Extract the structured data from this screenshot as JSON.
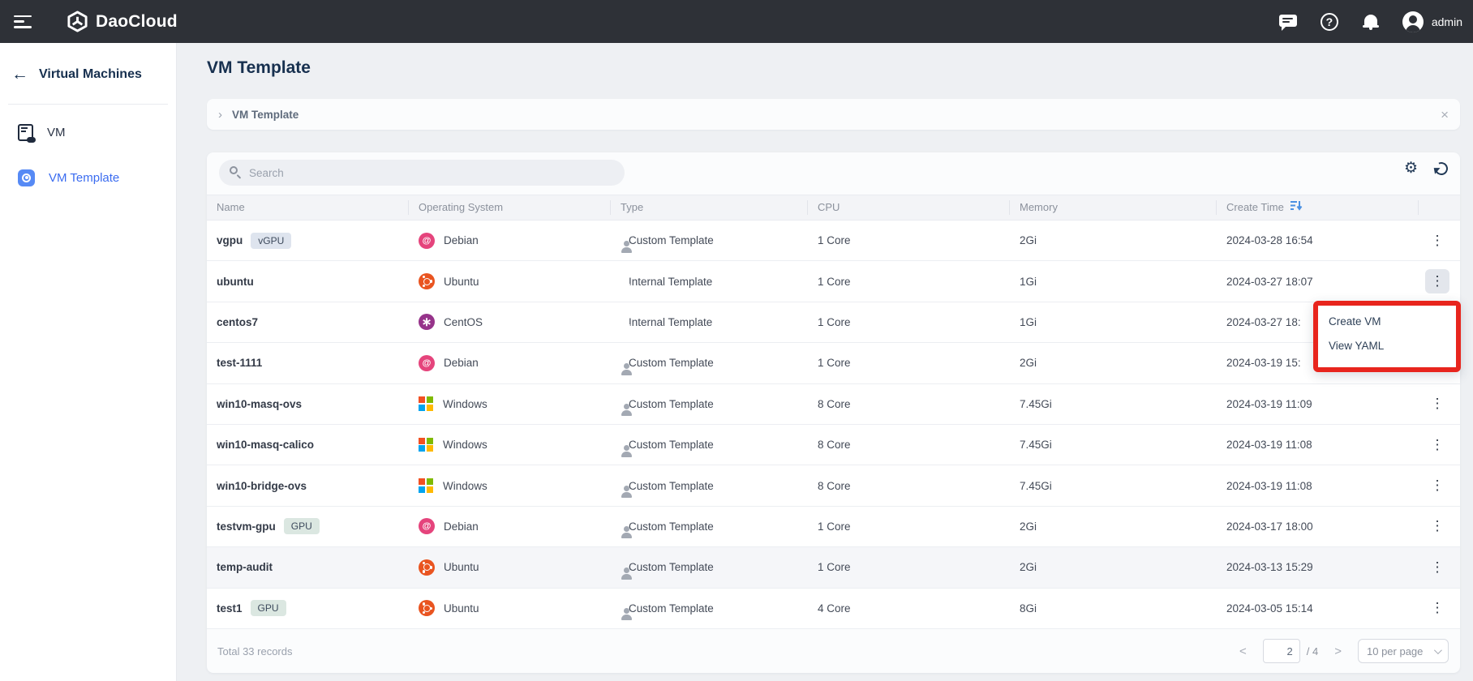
{
  "topbar": {
    "brand": "DaoCloud",
    "user": "admin",
    "icons": [
      "messages",
      "help",
      "notifications",
      "account"
    ]
  },
  "sidebar": {
    "back_label": "Virtual Machines",
    "items": [
      {
        "label": "VM",
        "icon": "vm-doc",
        "active": false
      },
      {
        "label": "VM Template",
        "icon": "vm-template",
        "active": true
      }
    ]
  },
  "page": {
    "title": "VM Template",
    "breadcrumb": "VM Template",
    "breadcrumb_chevron": "›",
    "close_glyph": "×"
  },
  "toolbar": {
    "search_placeholder": "Search"
  },
  "table": {
    "columns": [
      "Name",
      "Operating System",
      "Type",
      "CPU",
      "Memory",
      "Create Time"
    ],
    "sorted_column": "Create Time",
    "rows": [
      {
        "name": "vgpu",
        "badge": "vGPU",
        "badge_kind": "blue",
        "os": "Debian",
        "os_kind": "debian",
        "type": "Custom Template",
        "type_kind": "custom",
        "cpu": "1 Core",
        "memory": "2Gi",
        "created": "2024-03-28 16:54",
        "menu_open": false
      },
      {
        "name": "ubuntu",
        "badge": null,
        "badge_kind": null,
        "os": "Ubuntu",
        "os_kind": "ubuntu",
        "type": "Internal Template",
        "type_kind": "internal",
        "cpu": "1 Core",
        "memory": "1Gi",
        "created": "2024-03-27 18:07",
        "menu_open": true
      },
      {
        "name": "centos7",
        "badge": null,
        "badge_kind": null,
        "os": "CentOS",
        "os_kind": "centos",
        "type": "Internal Template",
        "type_kind": "internal",
        "cpu": "1 Core",
        "memory": "1Gi",
        "created": "2024-03-27 18:",
        "menu_open": false
      },
      {
        "name": "test-1111",
        "badge": null,
        "badge_kind": null,
        "os": "Debian",
        "os_kind": "debian",
        "type": "Custom Template",
        "type_kind": "custom",
        "cpu": "1 Core",
        "memory": "2Gi",
        "created": "2024-03-19 15:",
        "menu_open": false
      },
      {
        "name": "win10-masq-ovs",
        "badge": null,
        "badge_kind": null,
        "os": "Windows",
        "os_kind": "windows",
        "type": "Custom Template",
        "type_kind": "custom",
        "cpu": "8 Core",
        "memory": "7.45Gi",
        "created": "2024-03-19 11:09",
        "menu_open": false
      },
      {
        "name": "win10-masq-calico",
        "badge": null,
        "badge_kind": null,
        "os": "Windows",
        "os_kind": "windows",
        "type": "Custom Template",
        "type_kind": "custom",
        "cpu": "8 Core",
        "memory": "7.45Gi",
        "created": "2024-03-19 11:08",
        "menu_open": false
      },
      {
        "name": "win10-bridge-ovs",
        "badge": null,
        "badge_kind": null,
        "os": "Windows",
        "os_kind": "windows",
        "type": "Custom Template",
        "type_kind": "custom",
        "cpu": "8 Core",
        "memory": "7.45Gi",
        "created": "2024-03-19 11:08",
        "menu_open": false
      },
      {
        "name": "testvm-gpu",
        "badge": "GPU",
        "badge_kind": "green",
        "os": "Debian",
        "os_kind": "debian",
        "type": "Custom Template",
        "type_kind": "custom",
        "cpu": "1 Core",
        "memory": "2Gi",
        "created": "2024-03-17 18:00",
        "menu_open": false
      },
      {
        "name": "temp-audit",
        "badge": null,
        "badge_kind": null,
        "os": "Ubuntu",
        "os_kind": "ubuntu",
        "type": "Custom Template",
        "type_kind": "custom",
        "cpu": "1 Core",
        "memory": "2Gi",
        "created": "2024-03-13 15:29",
        "menu_open": false,
        "shaded": true
      },
      {
        "name": "test1",
        "badge": "GPU",
        "badge_kind": "green",
        "os": "Ubuntu",
        "os_kind": "ubuntu",
        "type": "Custom Template",
        "type_kind": "custom",
        "cpu": "4 Core",
        "memory": "8Gi",
        "created": "2024-03-05 15:14",
        "menu_open": false
      }
    ]
  },
  "context_menu": {
    "items": [
      "Create VM",
      "View YAML"
    ]
  },
  "footer": {
    "total": "Total 33 records",
    "prev_glyph": "<",
    "next_glyph": ">",
    "current_page": "2",
    "pages_suffix": "/ 4",
    "page_size": "10 per page"
  },
  "colors": {
    "topbar_bg": "#2e3137",
    "accent_blue": "#3b6cf0",
    "annotation_red": "#e8251d",
    "sort_icon_blue": "#4a90e2",
    "badge_blue_bg": "#dee4ee",
    "badge_green_bg": "#dbe7e1",
    "os_debian": "#e5447c",
    "os_ubuntu": "#e95420",
    "os_centos": "#96338a",
    "windows": [
      "#f25022",
      "#7fba00",
      "#00a4ef",
      "#ffb900"
    ]
  }
}
